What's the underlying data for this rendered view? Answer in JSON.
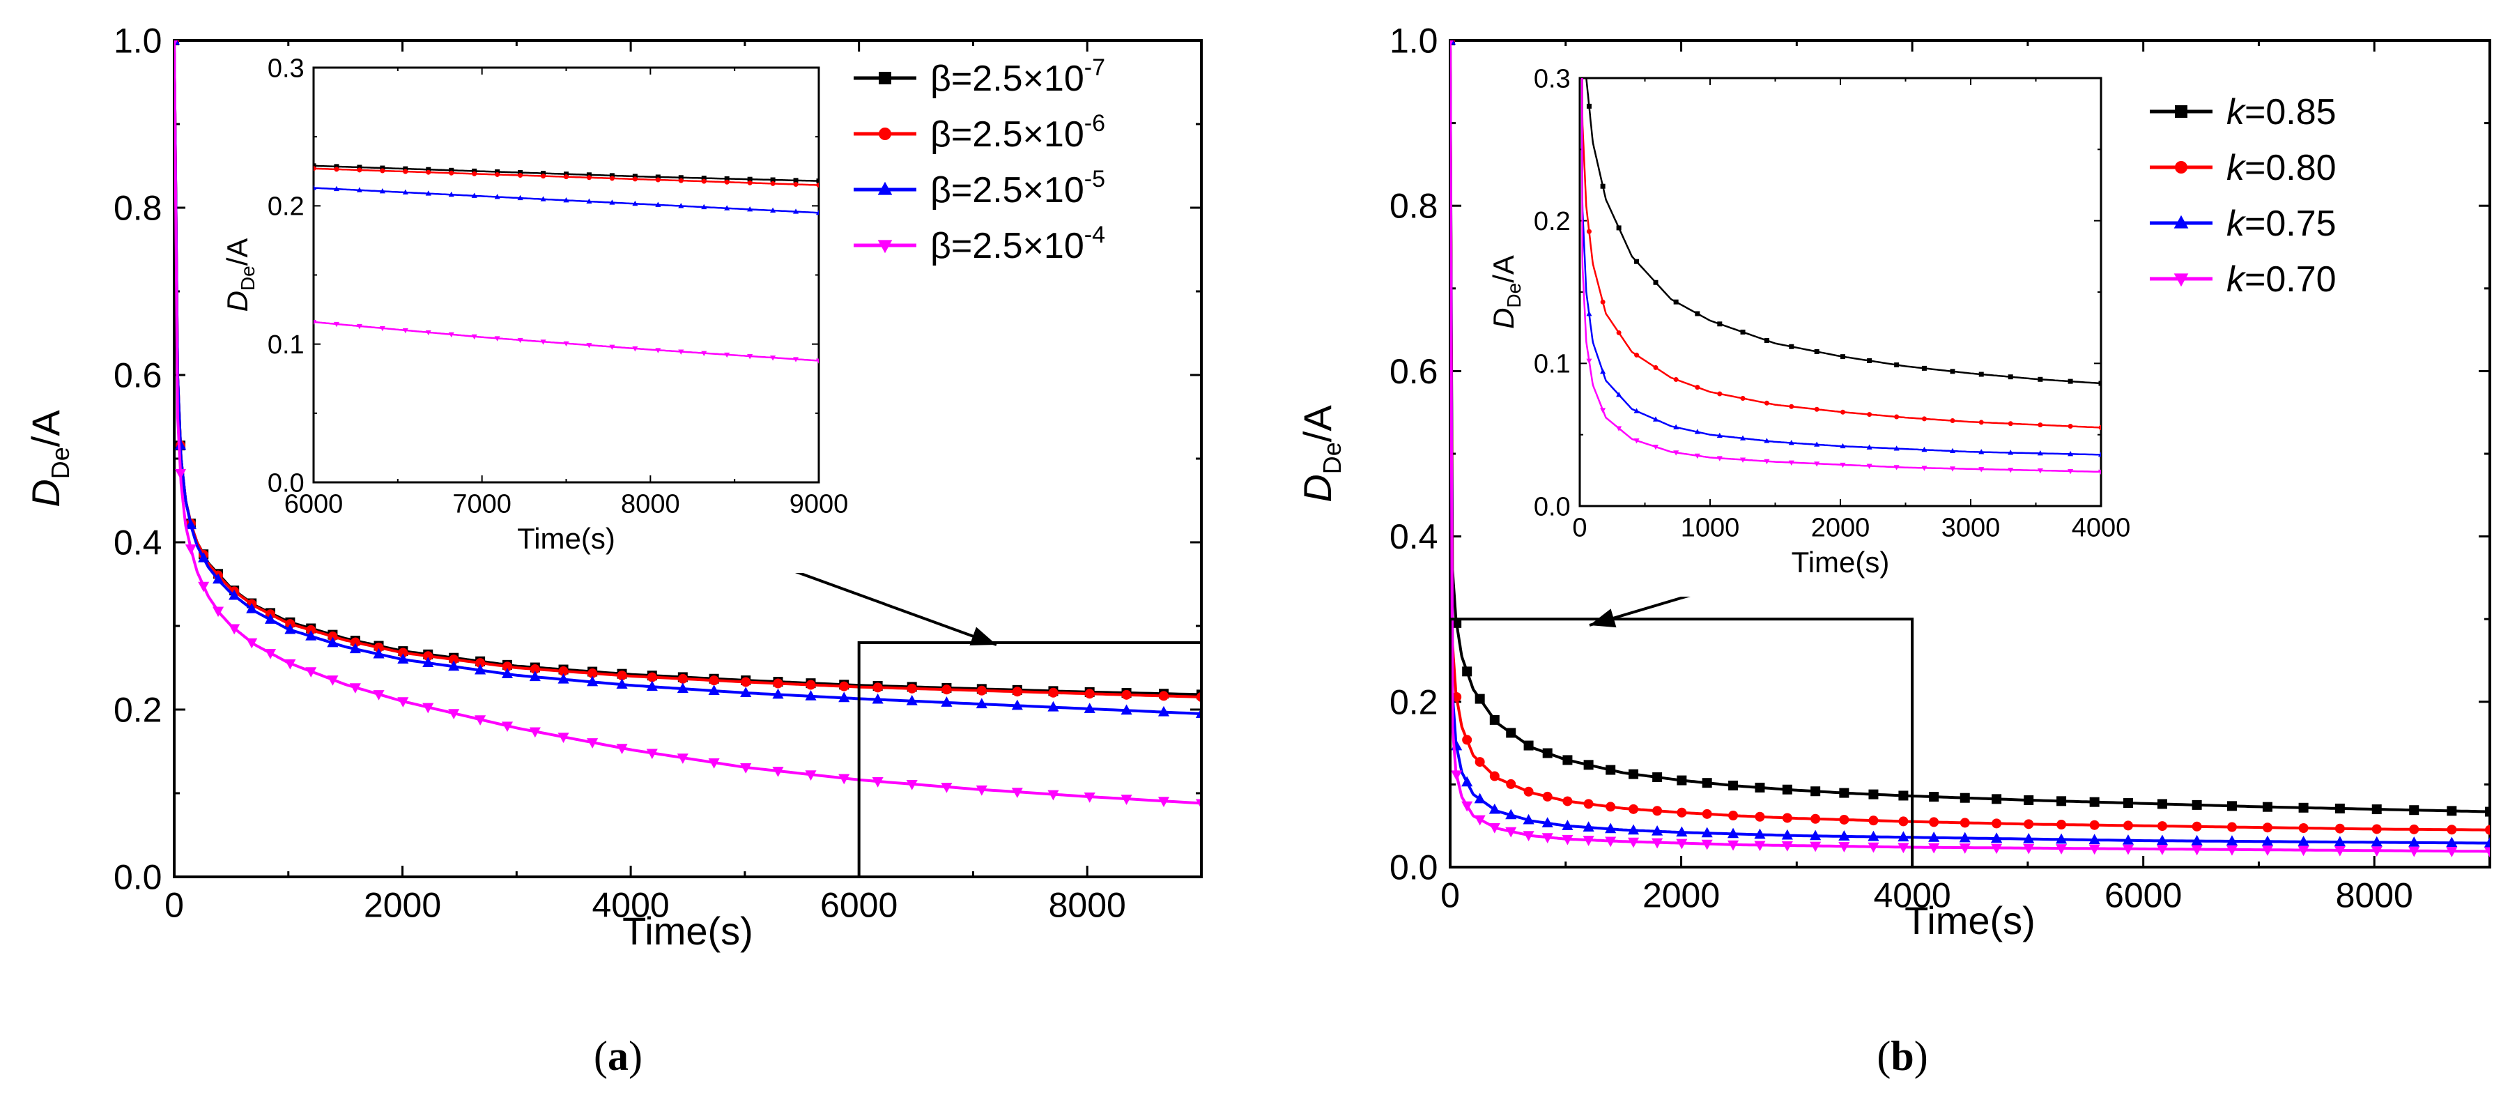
{
  "chart_data": [
    {
      "type": "line",
      "panel_label": "(a)",
      "xlabel": "Time(s)",
      "ylabel_main": "D",
      "ylabel_sub": "De",
      "ylabel_tail": "/A",
      "xlim": [
        0,
        9000
      ],
      "ylim": [
        0,
        1.0
      ],
      "xticks": [
        0,
        2000,
        4000,
        6000,
        8000
      ],
      "yticks": [
        0.0,
        0.2,
        0.4,
        0.6,
        0.8,
        1.0
      ],
      "xtick_labels": [
        "0",
        "2000",
        "4000",
        "6000",
        "8000"
      ],
      "ytick_labels": [
        "0.0",
        "0.2",
        "0.4",
        "0.6",
        "0.8",
        "1.0"
      ],
      "legend_position": "top-right",
      "zoom_box": {
        "x": [
          6000,
          9000
        ],
        "y": [
          0,
          0.28
        ]
      },
      "series": [
        {
          "name": "β=2.5×10",
          "exp": "-7",
          "color": "#000000",
          "marker": "square",
          "x": [
            0,
            30,
            60,
            100,
            150,
            200,
            300,
            400,
            500,
            700,
            1000,
            1500,
            2000,
            3000,
            4000,
            5000,
            6000,
            7000,
            8000,
            9000
          ],
          "y": [
            1.0,
            0.6,
            0.5,
            0.45,
            0.42,
            0.4,
            0.375,
            0.36,
            0.345,
            0.325,
            0.305,
            0.285,
            0.27,
            0.252,
            0.242,
            0.235,
            0.229,
            0.225,
            0.221,
            0.218
          ]
        },
        {
          "name": "β=2.5×10",
          "exp": "-6",
          "color": "#ff0000",
          "marker": "circle",
          "x": [
            0,
            30,
            60,
            100,
            150,
            200,
            300,
            400,
            500,
            700,
            1000,
            1500,
            2000,
            3000,
            4000,
            5000,
            6000,
            7000,
            8000,
            9000
          ],
          "y": [
            1.0,
            0.6,
            0.5,
            0.45,
            0.42,
            0.4,
            0.374,
            0.358,
            0.344,
            0.324,
            0.303,
            0.283,
            0.268,
            0.25,
            0.24,
            0.233,
            0.227,
            0.223,
            0.219,
            0.215
          ]
        },
        {
          "name": "β=2.5×10",
          "exp": "-5",
          "color": "#0000ff",
          "marker": "triangle-up",
          "x": [
            0,
            30,
            60,
            100,
            150,
            200,
            300,
            400,
            500,
            700,
            1000,
            1500,
            2000,
            3000,
            4000,
            5000,
            6000,
            7000,
            8000,
            9000
          ],
          "y": [
            1.0,
            0.6,
            0.5,
            0.45,
            0.418,
            0.396,
            0.37,
            0.353,
            0.339,
            0.318,
            0.296,
            0.275,
            0.26,
            0.241,
            0.229,
            0.22,
            0.213,
            0.207,
            0.201,
            0.195
          ]
        },
        {
          "name": "β=2.5×10",
          "exp": "-4",
          "color": "#ff00ff",
          "marker": "triangle-down",
          "x": [
            0,
            30,
            60,
            100,
            150,
            200,
            300,
            400,
            500,
            700,
            1000,
            1500,
            2000,
            3000,
            4000,
            5000,
            6000,
            7000,
            8000,
            9000
          ],
          "y": [
            1.0,
            0.55,
            0.47,
            0.42,
            0.39,
            0.365,
            0.335,
            0.315,
            0.3,
            0.278,
            0.256,
            0.23,
            0.21,
            0.178,
            0.152,
            0.131,
            0.116,
            0.105,
            0.096,
            0.088
          ]
        }
      ],
      "inset": {
        "xlabel": "Time(s)",
        "ylabel_main": "D",
        "ylabel_sub": "De",
        "ylabel_tail": "/A",
        "xlim": [
          6000,
          9000
        ],
        "ylim": [
          0,
          0.3
        ],
        "xticks": [
          6000,
          7000,
          8000,
          9000
        ],
        "yticks": [
          0.0,
          0.1,
          0.2,
          0.3
        ],
        "xtick_labels": [
          "6000",
          "7000",
          "8000",
          "9000"
        ],
        "ytick_labels": [
          "0.0",
          "0.1",
          "0.2",
          "0.3"
        ]
      }
    },
    {
      "type": "line",
      "panel_label": "(b)",
      "xlabel": "Time(s)",
      "ylabel_main": "D",
      "ylabel_sub": "De",
      "ylabel_tail": "/A",
      "xlim": [
        0,
        9000
      ],
      "ylim": [
        0,
        1.0
      ],
      "xticks": [
        0,
        2000,
        4000,
        6000,
        8000
      ],
      "yticks": [
        0.0,
        0.2,
        0.4,
        0.6,
        0.8,
        1.0
      ],
      "xtick_labels": [
        "0",
        "2000",
        "4000",
        "6000",
        "8000"
      ],
      "ytick_labels": [
        "0.0",
        "0.2",
        "0.4",
        "0.6",
        "0.8",
        "1.0"
      ],
      "legend_position": "top-right",
      "zoom_box": {
        "x": [
          0,
          4000
        ],
        "y": [
          0,
          0.3
        ]
      },
      "series": [
        {
          "name": "=0.85",
          "italic_prefix": "k",
          "color": "#000000",
          "marker": "square",
          "x": [
            0,
            20,
            50,
            100,
            200,
            400,
            700,
            1000,
            1500,
            2000,
            2500,
            3000,
            3500,
            4000,
            5000,
            6000,
            7000,
            8000,
            9000
          ],
          "y": [
            1.0,
            0.36,
            0.3,
            0.255,
            0.215,
            0.175,
            0.145,
            0.13,
            0.114,
            0.105,
            0.098,
            0.093,
            0.089,
            0.086,
            0.081,
            0.077,
            0.073,
            0.07,
            0.067
          ]
        },
        {
          "name": "=0.80",
          "italic_prefix": "k",
          "color": "#ff0000",
          "marker": "circle",
          "x": [
            0,
            20,
            50,
            100,
            200,
            400,
            700,
            1000,
            1500,
            2000,
            2500,
            3000,
            3500,
            4000,
            5000,
            6000,
            7000,
            8000,
            9000
          ],
          "y": [
            1.0,
            0.27,
            0.21,
            0.17,
            0.135,
            0.108,
            0.09,
            0.08,
            0.071,
            0.066,
            0.062,
            0.059,
            0.057,
            0.055,
            0.052,
            0.05,
            0.048,
            0.046,
            0.045
          ]
        },
        {
          "name": "=0.75",
          "italic_prefix": "k",
          "color": "#0000ff",
          "marker": "triangle-up",
          "x": [
            0,
            20,
            50,
            100,
            200,
            400,
            700,
            1000,
            1500,
            2000,
            2500,
            3000,
            3500,
            4000,
            5000,
            6000,
            7000,
            8000,
            9000
          ],
          "y": [
            1.0,
            0.21,
            0.15,
            0.115,
            0.088,
            0.068,
            0.056,
            0.05,
            0.045,
            0.042,
            0.04,
            0.038,
            0.037,
            0.036,
            0.034,
            0.032,
            0.031,
            0.03,
            0.029
          ]
        },
        {
          "name": "=0.70",
          "italic_prefix": "k",
          "color": "#ff00ff",
          "marker": "triangle-down",
          "x": [
            0,
            20,
            50,
            100,
            200,
            400,
            700,
            1000,
            1500,
            2000,
            2500,
            3000,
            3500,
            4000,
            5000,
            6000,
            7000,
            8000,
            9000
          ],
          "y": [
            1.0,
            0.17,
            0.115,
            0.085,
            0.062,
            0.047,
            0.038,
            0.034,
            0.031,
            0.029,
            0.027,
            0.026,
            0.025,
            0.024,
            0.023,
            0.022,
            0.021,
            0.02,
            0.019
          ]
        }
      ],
      "inset": {
        "xlabel": "Time(s)",
        "ylabel_main": "D",
        "ylabel_sub": "De",
        "ylabel_tail": "/A",
        "xlim": [
          0,
          4000
        ],
        "ylim": [
          0,
          0.3
        ],
        "xticks": [
          0,
          1000,
          2000,
          3000,
          4000
        ],
        "yticks": [
          0.0,
          0.1,
          0.2,
          0.3
        ],
        "xtick_labels": [
          "0",
          "1000",
          "2000",
          "3000",
          "4000"
        ],
        "ytick_labels": [
          "0.0",
          "0.1",
          "0.2",
          "0.3"
        ]
      }
    }
  ]
}
